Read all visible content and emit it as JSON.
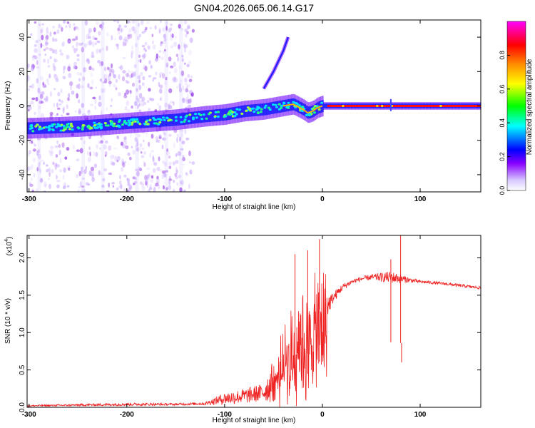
{
  "title": "GN04.2026.065.06.14.G17",
  "chart_data": [
    {
      "type": "heatmap",
      "title": "GN04.2026.065.06.14.G17",
      "xlabel": "Height of straight line (km)",
      "ylabel": "Frequency (Hz)",
      "xlim": [
        -302,
        162
      ],
      "ylim": [
        -50,
        50
      ],
      "xticks": [
        -300,
        -200,
        -100,
        0,
        100
      ],
      "yticks": [
        -40,
        -20,
        0,
        20,
        40
      ],
      "ridge": {
        "description": "dominant frequency line vs height",
        "x": [
          -300,
          -250,
          -200,
          -150,
          -120,
          -100,
          -80,
          -60,
          -40,
          -30,
          -20,
          -15,
          -10,
          -5,
          0,
          10,
          50,
          100,
          160
        ],
        "y": [
          -13,
          -12,
          -10,
          -8,
          -6,
          -5,
          -3,
          -2,
          0,
          1,
          -2,
          -4,
          -3,
          -1,
          0,
          0,
          0,
          0,
          0
        ],
        "amplitude": [
          0.3,
          0.35,
          0.4,
          0.45,
          0.5,
          0.5,
          0.55,
          0.55,
          0.6,
          0.7,
          0.6,
          0.5,
          0.5,
          0.6,
          0.8,
          1.0,
          1.0,
          1.0,
          1.0
        ]
      },
      "branch": {
        "x": [
          -60,
          -50,
          -40,
          -35
        ],
        "y": [
          10,
          20,
          32,
          40
        ]
      },
      "colorbar": {
        "label": "Normalized spectral amplitude",
        "ticks": [
          0.0,
          0.2,
          0.4,
          0.6,
          0.8
        ],
        "range": [
          0,
          1
        ],
        "colors": [
          "#ffffff",
          "#d8c8ff",
          "#8800ff",
          "#0000ff",
          "#00ffff",
          "#00ff00",
          "#ffff00",
          "#ff8800",
          "#ff0000",
          "#ff00ff"
        ]
      }
    },
    {
      "type": "line",
      "xlabel": "Height of straight line (km)",
      "ylabel": "SNR (10 * v/v)",
      "yscale_label": "(x10",
      "yscale_exp": "4",
      "yscale_close": ")",
      "xlim": [
        -302,
        162
      ],
      "ylim": [
        0,
        2.3
      ],
      "xticks": [
        -300,
        -200,
        -100,
        0,
        100
      ],
      "yticks": [
        0.0,
        0.5,
        1.0,
        1.5,
        2.0
      ],
      "ytick_labels": [
        "0.0",
        "0.5",
        "1.0",
        "1.5",
        "2.0"
      ],
      "series": [
        {
          "name": "SNR",
          "color": "#ee2222",
          "envelope_x": [
            -300,
            -250,
            -200,
            -150,
            -120,
            -100,
            -80,
            -60,
            -50,
            -40,
            -30,
            -25,
            -20,
            -15,
            -10,
            -5,
            0,
            10,
            20,
            30,
            40,
            50,
            60,
            70,
            80,
            90,
            100,
            120,
            140,
            160
          ],
          "envelope_y": [
            0.02,
            0.03,
            0.04,
            0.04,
            0.05,
            0.12,
            0.15,
            0.2,
            0.35,
            0.6,
            0.8,
            1.0,
            1.05,
            0.9,
            1.1,
            1.2,
            1.25,
            1.45,
            1.6,
            1.68,
            1.72,
            1.74,
            1.74,
            1.74,
            1.72,
            1.7,
            1.68,
            1.66,
            1.63,
            1.6
          ],
          "noise_y": [
            0.01,
            0.015,
            0.02,
            0.015,
            0.02,
            0.08,
            0.1,
            0.12,
            0.3,
            0.5,
            0.55,
            0.6,
            0.6,
            0.5,
            0.4,
            0.3,
            0.25,
            0.08,
            0.05,
            0.03,
            0.03,
            0.04,
            0.06,
            0.08,
            0.06,
            0.03,
            0.02,
            0.02,
            0.02,
            0.02
          ]
        }
      ],
      "spikes": [
        {
          "x": -28,
          "y": 2.05
        },
        {
          "x": -15,
          "y": 2.1
        },
        {
          "x": -3,
          "y": 2.25
        },
        {
          "x": 70,
          "y": 1.98
        },
        {
          "x": 80,
          "y": 2.3
        },
        {
          "x": 81,
          "y": 0.6
        }
      ]
    }
  ]
}
